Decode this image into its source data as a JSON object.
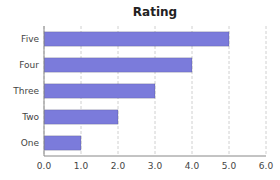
{
  "chart_data": {
    "type": "bar",
    "orientation": "horizontal",
    "title": "Rating",
    "categories": [
      "One",
      "Two",
      "Three",
      "Four",
      "Five"
    ],
    "values": [
      1,
      2,
      3,
      4,
      5
    ],
    "color": "#7b7bdb",
    "xlim": [
      0,
      6
    ],
    "xticks": [
      {
        "value": 0,
        "label": "0.0"
      },
      {
        "value": 1,
        "label": "1.0"
      },
      {
        "value": 2,
        "label": "2.0"
      },
      {
        "value": 3,
        "label": "3.0"
      },
      {
        "value": 4,
        "label": "4.0"
      },
      {
        "value": 5,
        "label": "5.0"
      },
      {
        "value": 6,
        "label": "6.0"
      }
    ],
    "grid": true
  }
}
